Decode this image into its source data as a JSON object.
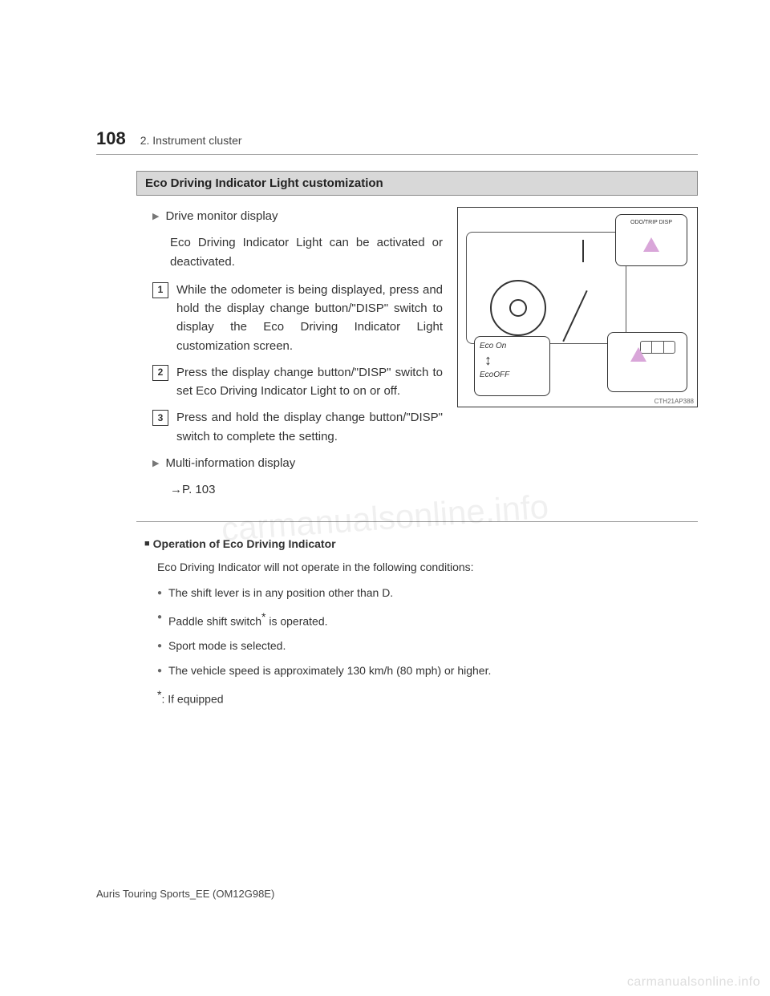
{
  "header": {
    "page_number": "108",
    "section_label": "2. Instrument cluster"
  },
  "section_bar": "Eco Driving Indicator Light customization",
  "drive_monitor": {
    "heading": "Drive monitor display",
    "intro": "Eco Driving Indicator Light can be activated or deactivated.",
    "steps": [
      "While the odometer is being displayed, press and hold the display change button/\"DISP\" switch to display the Eco Driving Indicator Light customization screen.",
      "Press the display change button/\"DISP\" switch to set Eco Driving Indicator Light to on or off.",
      "Press and hold the display change button/\"DISP\" switch to complete the setting."
    ]
  },
  "multi_info": {
    "heading": "Multi-information display",
    "ref": "→P. 103"
  },
  "figure": {
    "top_label": "ODO/TRIP\nDISP",
    "eco_on": "Eco On",
    "eco_off": "EcoOFF",
    "code": "CTH21AP388"
  },
  "notes": {
    "title": "Operation of Eco Driving Indicator",
    "body": "Eco Driving Indicator will not operate in the following conditions:",
    "items": [
      "The shift lever is in any position other than D.",
      "Paddle shift switch",
      "is operated.",
      "Sport mode is selected.",
      "The vehicle speed is approximately 130 km/h (80 mph) or higher."
    ],
    "footnote_mark": "*",
    "footnote": ": If equipped"
  },
  "footer": "Auris Touring Sports_EE (OM12G98E)",
  "watermark": "carmanualsonline.info",
  "colors": {
    "bar_bg": "#d8d8d8",
    "text": "#333333",
    "pointer": "#d9a6d9"
  }
}
